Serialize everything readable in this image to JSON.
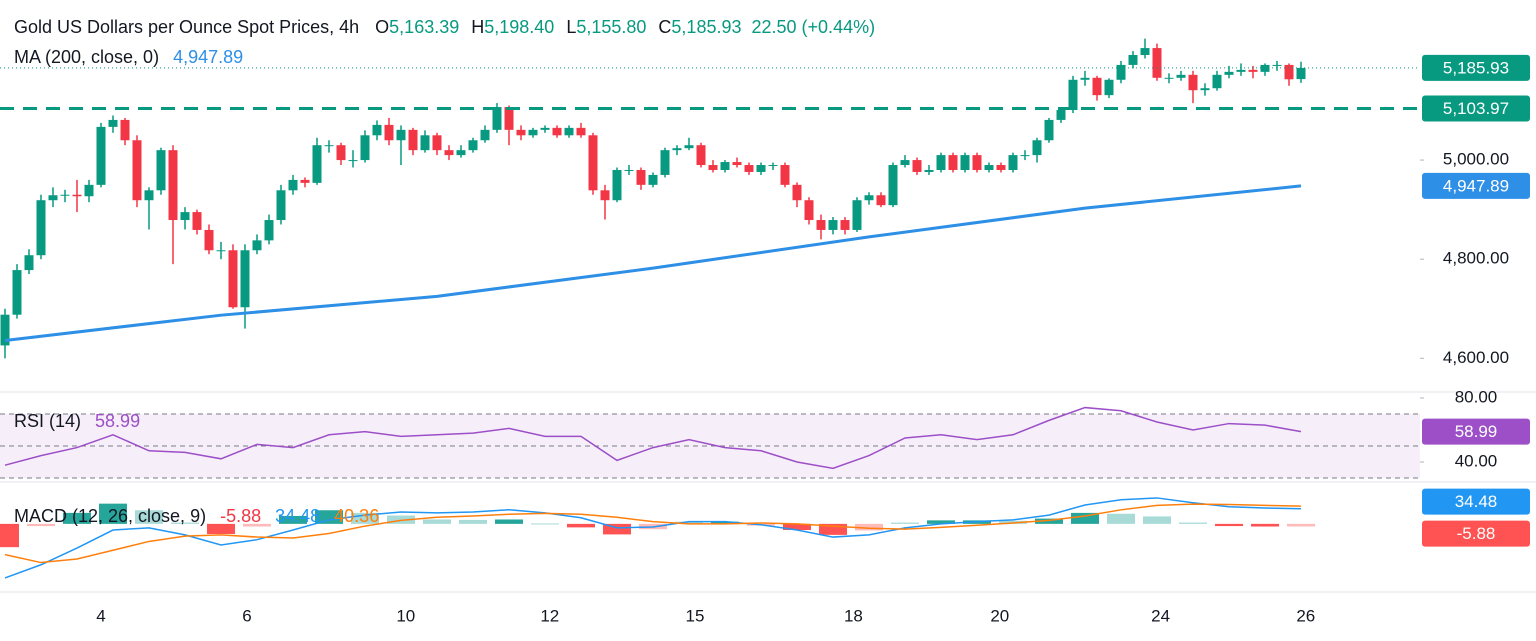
{
  "chart_data": [
    {
      "type": "candlestick",
      "title": "Gold US Dollars per Ounce Spot Prices, 4h",
      "ohlc": [
        {
          "key": "O",
          "value": "5,163.39"
        },
        {
          "key": "H",
          "value": "5,198.40"
        },
        {
          "key": "L",
          "value": "5,155.80"
        },
        {
          "key": "C",
          "value": "5,185.93"
        }
      ],
      "change": "22.50 (+0.44%)",
      "up_color": "#089981",
      "down_color": "#f23645",
      "ylim": [
        4532,
        5323
      ],
      "yticks": [
        {
          "value": 5000,
          "label": "5,000.00"
        },
        {
          "value": 4800,
          "label": "4,800.00"
        },
        {
          "value": 4600,
          "label": "4,600.00"
        }
      ],
      "xticks": [
        {
          "value": 8,
          "label": "4"
        },
        {
          "value": 20.17,
          "label": "6"
        },
        {
          "value": 33.4,
          "label": "10"
        },
        {
          "value": 45.4,
          "label": "12"
        },
        {
          "value": 57.5,
          "label": "15"
        },
        {
          "value": 70.7,
          "label": "18"
        },
        {
          "value": 82.9,
          "label": "20"
        },
        {
          "value": 96.3,
          "label": "24"
        },
        {
          "value": 108.4,
          "label": "26"
        }
      ],
      "open": [
        4626,
        4688,
        4778,
        4808,
        4919,
        4929,
        4930,
        4927,
        4950,
        5067,
        5081,
        5040,
        4919,
        4939,
        5020,
        4879,
        4895,
        4859,
        4818,
        4818,
        4703,
        4818,
        4838,
        4879,
        4939,
        4960,
        4954,
        5030,
        5030,
        5000,
        5000,
        5050,
        5071,
        5040,
        5061,
        5020,
        5050,
        5020,
        5010,
        5020,
        5040,
        5061,
        5107,
        5061,
        5050,
        5061,
        5065,
        5050,
        5065,
        5050,
        4939,
        4919,
        4980,
        4980,
        4950,
        4970,
        5020,
        5024,
        5030,
        4990,
        4980,
        4996,
        4990,
        4976,
        4990,
        4990,
        4950,
        4919,
        4879,
        4859,
        4879,
        4859,
        4919,
        4929,
        4909,
        4990,
        5000,
        4976,
        4980,
        5010,
        4980,
        5010,
        4980,
        4990,
        4980,
        5010,
        5010,
        5040,
        5081,
        5101,
        5162,
        5166,
        5131,
        5162,
        5192,
        5212,
        5226,
        5166,
        5166,
        5172,
        5141,
        5145,
        5172,
        5178,
        5182,
        5178,
        5192,
        5192,
        5163.39
      ],
      "high": [
        4700,
        4790,
        4820,
        4930,
        4945,
        4940,
        4960,
        4960,
        5075,
        5090,
        5085,
        5050,
        4945,
        5025,
        5030,
        4905,
        4900,
        4870,
        4835,
        4830,
        4830,
        4850,
        4890,
        4950,
        4970,
        4965,
        5045,
        5040,
        5035,
        5020,
        5060,
        5080,
        5085,
        5070,
        5065,
        5060,
        5055,
        5030,
        5030,
        5045,
        5070,
        5115,
        5110,
        5070,
        5065,
        5070,
        5070,
        5070,
        5075,
        5055,
        4950,
        4985,
        4990,
        4985,
        4975,
        5025,
        5030,
        5045,
        5035,
        5000,
        5000,
        5005,
        4995,
        4995,
        4995,
        4995,
        4955,
        4925,
        4890,
        4885,
        4885,
        4925,
        4935,
        4935,
        4995,
        5010,
        5005,
        4990,
        5015,
        5015,
        5015,
        5015,
        4995,
        4995,
        5015,
        5020,
        5045,
        5085,
        5105,
        5170,
        5180,
        5170,
        5165,
        5200,
        5220,
        5245,
        5235,
        5175,
        5180,
        5180,
        5155,
        5180,
        5190,
        5195,
        5190,
        5195,
        5200,
        5195,
        5198.4
      ],
      "low": [
        4600,
        4680,
        4770,
        4800,
        4905,
        4915,
        4895,
        4915,
        4945,
        5055,
        5030,
        4905,
        4860,
        4930,
        4790,
        4860,
        4850,
        4810,
        4800,
        4700,
        4660,
        4810,
        4830,
        4870,
        4930,
        4945,
        4950,
        5015,
        4990,
        4985,
        4995,
        5040,
        5030,
        4990,
        5010,
        5015,
        5010,
        5000,
        5005,
        5015,
        5035,
        5055,
        5030,
        5040,
        5045,
        5055,
        5045,
        5045,
        5045,
        4930,
        4880,
        4915,
        4970,
        4940,
        4945,
        4965,
        5010,
        5020,
        4985,
        4975,
        4975,
        4985,
        4970,
        4970,
        4980,
        4945,
        4905,
        4870,
        4840,
        4850,
        4850,
        4855,
        4910,
        4905,
        4905,
        4985,
        4970,
        4970,
        4975,
        4975,
        4975,
        4975,
        4975,
        4975,
        4975,
        5000,
        4995,
        5035,
        5075,
        5095,
        5150,
        5120,
        5125,
        5155,
        5185,
        5205,
        5160,
        5155,
        5160,
        5115,
        5130,
        5140,
        5165,
        5170,
        5165,
        5170,
        5180,
        5150,
        5155.8
      ],
      "close": [
        4688,
        4778,
        4808,
        4919,
        4929,
        4930,
        4927,
        4950,
        5067,
        5081,
        5040,
        4919,
        4939,
        5020,
        4879,
        4895,
        4859,
        4818,
        4818,
        4703,
        4818,
        4838,
        4879,
        4939,
        4960,
        4954,
        5030,
        5030,
        5000,
        5000,
        5050,
        5071,
        5040,
        5061,
        5020,
        5050,
        5020,
        5010,
        5020,
        5040,
        5061,
        5107,
        5061,
        5050,
        5061,
        5065,
        5050,
        5065,
        5050,
        4939,
        4919,
        4980,
        4980,
        4950,
        4970,
        5020,
        5024,
        5030,
        4990,
        4980,
        4996,
        4990,
        4976,
        4990,
        4990,
        4950,
        4919,
        4879,
        4859,
        4879,
        4859,
        4919,
        4929,
        4909,
        4990,
        5000,
        4976,
        4980,
        5010,
        4980,
        5010,
        4980,
        4990,
        4980,
        5010,
        5010,
        5040,
        5081,
        5101,
        5162,
        5166,
        5131,
        5162,
        5192,
        5212,
        5226,
        5166,
        5166,
        5172,
        5141,
        5145,
        5172,
        5178,
        5182,
        5178,
        5192,
        5192,
        5163,
        5185.93
      ],
      "close_label": "5,185.93",
      "levels": [
        {
          "value": 5103.97,
          "label": "5,103.97",
          "color": "#089981"
        }
      ],
      "ma": {
        "name": "MA (200, close, 0)",
        "color": "#2d8fe6",
        "x": [
          0,
          18,
          36,
          54,
          72,
          90,
          108
        ],
        "values": [
          4636,
          4687,
          4725,
          4782,
          4845,
          4903,
          4947.89
        ],
        "value_label": "4,947.89"
      }
    },
    {
      "type": "line",
      "title": "RSI (14)",
      "color": "#9c4fc7",
      "ylim": [
        27.5,
        83.1
      ],
      "yticks": [
        {
          "value": 80,
          "label": "80.00"
        },
        {
          "value": 40,
          "label": "40.00"
        }
      ],
      "levels": [
        70,
        50,
        30
      ],
      "x": [
        0,
        3,
        6,
        9,
        12,
        15,
        18,
        21,
        24,
        27,
        30,
        33,
        36,
        39,
        42,
        45,
        48,
        51,
        54,
        57,
        60,
        63,
        66,
        69,
        72,
        75,
        78,
        81,
        84,
        87,
        90,
        93,
        96,
        99,
        102,
        105,
        108
      ],
      "values": [
        38,
        44,
        49,
        57,
        47,
        46,
        42,
        51,
        49,
        57,
        59,
        56,
        57,
        58,
        61,
        56,
        56,
        41,
        49,
        54,
        49,
        47,
        40,
        36,
        44,
        55,
        57,
        54,
        57,
        66,
        74,
        72,
        65,
        60,
        64,
        63,
        58.99
      ],
      "value_label": "58.99"
    },
    {
      "type": "macd",
      "title": "MACD (12, 26, close, 9)",
      "ylim": [
        -155,
        93
      ],
      "x": [
        0,
        3,
        6,
        9,
        12,
        15,
        18,
        21,
        24,
        27,
        30,
        33,
        36,
        39,
        42,
        45,
        48,
        51,
        54,
        57,
        60,
        63,
        66,
        69,
        72,
        75,
        78,
        81,
        84,
        87,
        90,
        93,
        96,
        99,
        102,
        105,
        108
      ],
      "histogram": {
        "up_color": "#26a69a",
        "down_color": "#ff5252",
        "values": [
          -53,
          -5,
          25,
          46,
          31,
          3,
          -23,
          -6,
          18,
          31,
          25,
          19,
          10,
          9,
          10,
          1,
          -8,
          -24,
          -12,
          5,
          5,
          -4,
          -14,
          -25,
          -15,
          3,
          8,
          8,
          7,
          12,
          25,
          23,
          17,
          3,
          -5,
          -6,
          -5.88
        ],
        "value_label": "-5.88"
      },
      "macd": {
        "color": "#2196f3",
        "values": [
          -123,
          -93,
          -55,
          -14,
          -9,
          -25,
          -48,
          -36,
          -14,
          9,
          20,
          27,
          25,
          27,
          32,
          25,
          14,
          -9,
          -7,
          5,
          5,
          -2,
          -14,
          -30,
          -25,
          -9,
          0,
          5,
          9,
          20,
          43,
          55,
          59,
          48,
          39,
          36,
          34.48
        ],
        "value_label": "34.48"
      },
      "signal": {
        "color": "#ff7f0e",
        "values": [
          -70,
          -88,
          -80,
          -60,
          -40,
          -28,
          -25,
          -30,
          -32,
          -22,
          -5,
          8,
          15,
          18,
          22,
          24,
          22,
          15,
          5,
          0,
          0,
          2,
          0,
          -5,
          -10,
          -12,
          -8,
          -3,
          2,
          8,
          18,
          32,
          42,
          45,
          44,
          42,
          40.36
        ],
        "value_label": "40.36"
      }
    }
  ]
}
